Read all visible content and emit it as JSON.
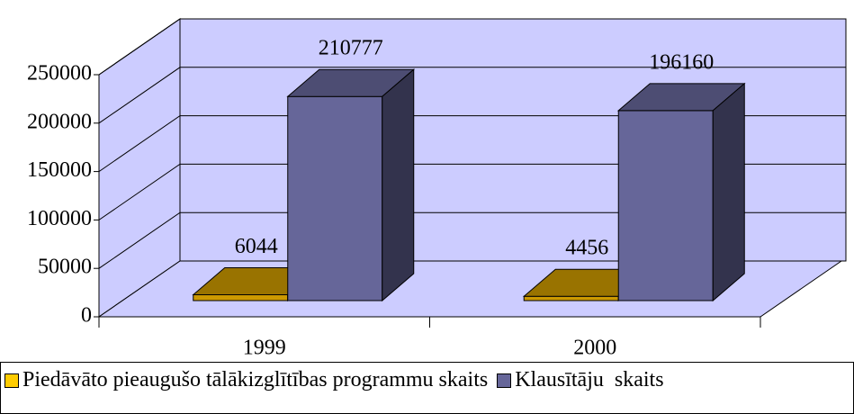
{
  "chart_data": {
    "type": "bar3d",
    "categories": [
      "1999",
      "2000"
    ],
    "series": [
      {
        "name": "Piedāvāto pieaugušo tālākizglītības programmu skaits",
        "color": "#cc9900",
        "values": [
          6044,
          4456
        ]
      },
      {
        "name": "Klausītāju  skaits",
        "color": "#666699",
        "values": [
          210777,
          196160
        ]
      }
    ],
    "ylim": [
      0,
      250000
    ],
    "yticks": [
      0,
      50000,
      100000,
      150000,
      200000,
      250000
    ],
    "grid": true,
    "legend": "bottom"
  }
}
